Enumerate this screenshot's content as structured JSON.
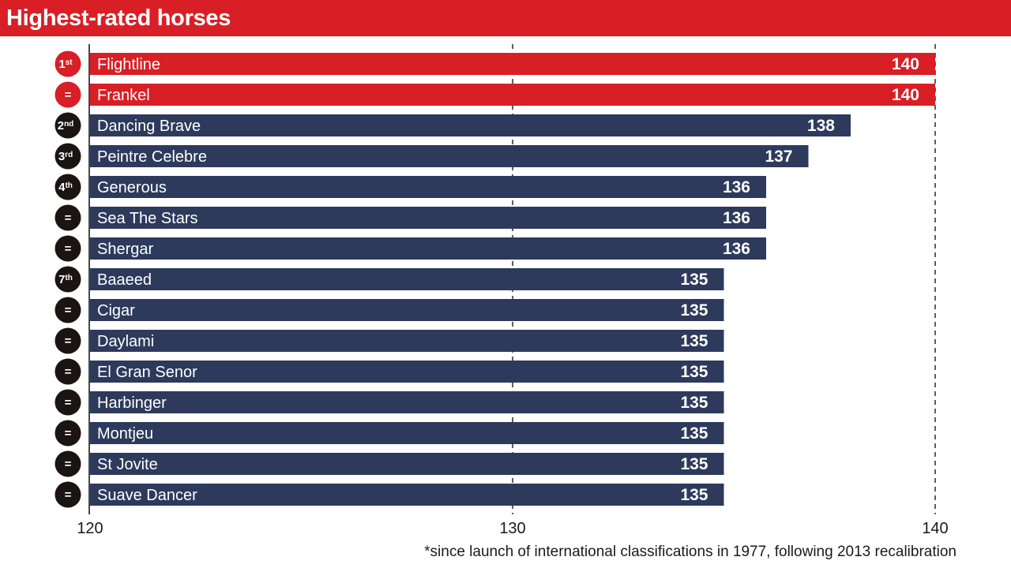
{
  "title": "Highest-rated horses",
  "footnote": "*since launch of international classifications in 1977, following 2013 recalibration",
  "colors": {
    "highlight": "#d81f26",
    "bar": "#2d3a5c",
    "rank_badge": "#1a1412",
    "header": "#d81f26"
  },
  "chart_data": {
    "type": "bar",
    "orientation": "horizontal",
    "xlim": [
      120,
      140
    ],
    "ticks": [
      "120",
      "130",
      "140"
    ],
    "gridlines": "dashed at 130 and 140",
    "rows": [
      {
        "rank": "1",
        "rank_suffix": "st",
        "name": "Flightline",
        "value": 140,
        "label": "140",
        "highlight": true
      },
      {
        "rank": "=",
        "rank_suffix": "",
        "name": "Frankel",
        "value": 140,
        "label": "140",
        "highlight": true
      },
      {
        "rank": "2",
        "rank_suffix": "nd",
        "name": "Dancing Brave",
        "value": 138,
        "label": "138",
        "highlight": false
      },
      {
        "rank": "3",
        "rank_suffix": "rd",
        "name": "Peintre Celebre",
        "value": 137,
        "label": "137",
        "highlight": false
      },
      {
        "rank": "4",
        "rank_suffix": "th",
        "name": "Generous",
        "value": 136,
        "label": "136",
        "highlight": false
      },
      {
        "rank": "=",
        "rank_suffix": "",
        "name": "Sea The Stars",
        "value": 136,
        "label": "136",
        "highlight": false
      },
      {
        "rank": "=",
        "rank_suffix": "",
        "name": "Shergar",
        "value": 136,
        "label": "136",
        "highlight": false
      },
      {
        "rank": "7",
        "rank_suffix": "th",
        "name": "Baaeed",
        "value": 135,
        "label": "135",
        "highlight": false
      },
      {
        "rank": "=",
        "rank_suffix": "",
        "name": "Cigar",
        "value": 135,
        "label": "135",
        "highlight": false
      },
      {
        "rank": "=",
        "rank_suffix": "",
        "name": "Daylami",
        "value": 135,
        "label": "135",
        "highlight": false
      },
      {
        "rank": "=",
        "rank_suffix": "",
        "name": "El Gran Senor",
        "value": 135,
        "label": "135",
        "highlight": false
      },
      {
        "rank": "=",
        "rank_suffix": "",
        "name": "Harbinger",
        "value": 135,
        "label": "135",
        "highlight": false
      },
      {
        "rank": "=",
        "rank_suffix": "",
        "name": "Montjeu",
        "value": 135,
        "label": "135",
        "highlight": false
      },
      {
        "rank": "=",
        "rank_suffix": "",
        "name": "St Jovite",
        "value": 135,
        "label": "135",
        "highlight": false
      },
      {
        "rank": "=",
        "rank_suffix": "",
        "name": "Suave Dancer",
        "value": 135,
        "label": "135",
        "highlight": false
      }
    ]
  }
}
